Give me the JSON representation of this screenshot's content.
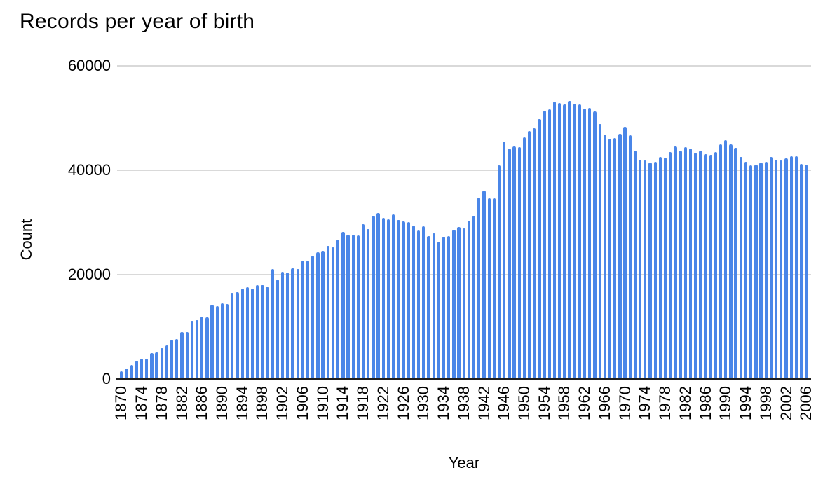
{
  "chart_data": {
    "type": "bar",
    "title": "Records per year of birth",
    "xlabel": "Year",
    "ylabel": "Count",
    "ylim": [
      0,
      60000
    ],
    "yticks": [
      0,
      20000,
      40000,
      60000
    ],
    "ytick_labels": [
      "0",
      "20000",
      "40000",
      "60000"
    ],
    "x_tick_step": 4,
    "grid": true,
    "legend_position": "none",
    "bar_color": "#4a86e8",
    "grid_color": "#d9d9d9",
    "axis_color": "#212121",
    "text_color": "#000000",
    "categories": [
      1870,
      1871,
      1872,
      1873,
      1874,
      1875,
      1876,
      1877,
      1878,
      1879,
      1880,
      1881,
      1882,
      1883,
      1884,
      1885,
      1886,
      1887,
      1888,
      1889,
      1890,
      1891,
      1892,
      1893,
      1894,
      1895,
      1896,
      1897,
      1898,
      1899,
      1900,
      1901,
      1902,
      1903,
      1904,
      1905,
      1906,
      1907,
      1908,
      1909,
      1910,
      1911,
      1912,
      1913,
      1914,
      1915,
      1916,
      1917,
      1918,
      1919,
      1920,
      1921,
      1922,
      1923,
      1924,
      1925,
      1926,
      1927,
      1928,
      1929,
      1930,
      1931,
      1932,
      1933,
      1934,
      1935,
      1936,
      1937,
      1938,
      1939,
      1940,
      1941,
      1942,
      1943,
      1944,
      1945,
      1946,
      1947,
      1948,
      1949,
      1950,
      1951,
      1952,
      1953,
      1954,
      1955,
      1956,
      1957,
      1958,
      1959,
      1960,
      1961,
      1962,
      1963,
      1964,
      1965,
      1966,
      1967,
      1968,
      1969,
      1970,
      1971,
      1972,
      1973,
      1974,
      1975,
      1976,
      1977,
      1978,
      1979,
      1980,
      1981,
      1982,
      1983,
      1984,
      1985,
      1986,
      1987,
      1988,
      1989,
      1990,
      1991,
      1992,
      1993,
      1994,
      1995,
      1996,
      1997,
      1998,
      1999,
      2000,
      2001,
      2002,
      2003,
      2004,
      2005,
      2006
    ],
    "values": [
      1400,
      1900,
      2600,
      3400,
      3800,
      3900,
      4900,
      5100,
      5800,
      6400,
      7500,
      7600,
      9000,
      9000,
      11100,
      11200,
      11900,
      11800,
      14200,
      13900,
      14400,
      14300,
      16500,
      16600,
      17300,
      17500,
      17300,
      18000,
      17900,
      17700,
      21000,
      19000,
      20500,
      20400,
      21200,
      21100,
      22600,
      22700,
      23600,
      24300,
      24500,
      25500,
      25200,
      26700,
      28200,
      27600,
      27600,
      27500,
      29600,
      28700,
      31200,
      31800,
      30800,
      30600,
      31500,
      30400,
      30200,
      30100,
      29400,
      28400,
      29200,
      27300,
      27900,
      26300,
      27200,
      27400,
      28600,
      29100,
      28800,
      30300,
      31300,
      34700,
      36100,
      34600,
      34600,
      40900,
      45500,
      44100,
      44600,
      44400,
      46300,
      47500,
      48100,
      49800,
      51400,
      51700,
      53200,
      52900,
      52600,
      53300,
      52700,
      52600,
      51800,
      52000,
      51300,
      48900,
      46900,
      46000,
      46100,
      47000,
      48300,
      46700,
      43700,
      42000,
      41900,
      41500,
      41600,
      42500,
      42400,
      43500,
      44500,
      43800,
      44400,
      44200,
      43400,
      43800,
      43100,
      43000,
      43500,
      45000,
      45800,
      44900,
      44300,
      42500,
      41600,
      40900,
      41100,
      41400,
      41600,
      42500,
      42000,
      41800,
      42300,
      42700,
      42700,
      41200,
      41100
    ]
  }
}
